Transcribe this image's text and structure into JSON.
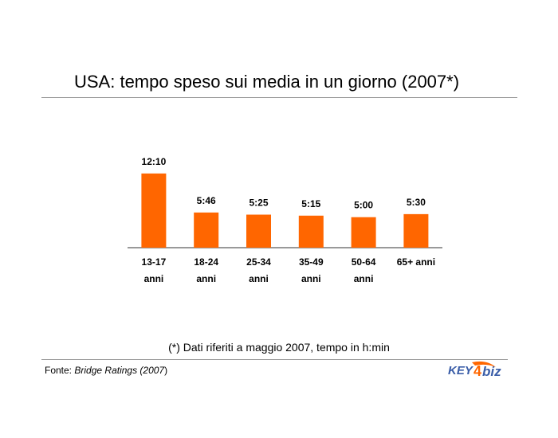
{
  "source": {
    "label": "Fonte:",
    "name": "Bridge Ratings (2007",
    "close": ")"
  },
  "logo": {
    "icon": "key4biz-logo-icon",
    "text": "KEY4biz"
  },
  "chart_data": {
    "type": "bar",
    "title": "USA: tempo speso sui media in un giorno (2007*)",
    "note": "(*) Dati riferiti a maggio 2007, tempo in h:min",
    "categories": [
      [
        "13-17",
        "anni"
      ],
      [
        "18-24",
        "anni"
      ],
      [
        "25-34",
        "anni"
      ],
      [
        "35-49",
        "anni"
      ],
      [
        "50-64",
        "anni"
      ],
      [
        "65+ anni"
      ]
    ],
    "values": [
      730,
      346,
      325,
      315,
      300,
      330
    ],
    "value_labels": [
      "12:10",
      "5:46",
      "5:25",
      "5:15",
      "5:00",
      "5:30"
    ],
    "unit": "minutes",
    "bar_color": "#ff6600",
    "xlabel": "",
    "ylabel": "",
    "ylim": [
      0,
      760
    ],
    "grid": false,
    "legend": "none"
  }
}
